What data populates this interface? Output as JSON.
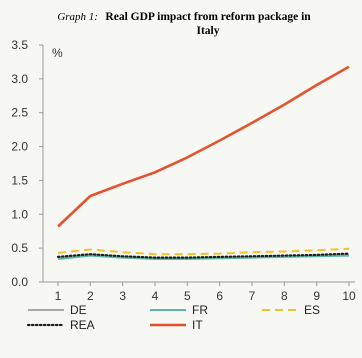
{
  "chart_data": {
    "type": "line",
    "title_prefix": "Graph 1:",
    "title_line1": "Real GDP impact from reform package in",
    "title_line2": "Italy",
    "unit_label": "%",
    "x": [
      1,
      2,
      3,
      4,
      5,
      6,
      7,
      8,
      9,
      10
    ],
    "x_tick_labels": [
      "1",
      "2",
      "3",
      "4",
      "5",
      "6",
      "7",
      "8",
      "9",
      "10"
    ],
    "y_tick_labels": [
      "0.0",
      "0.5",
      "1.0",
      "1.5",
      "2.0",
      "2.5",
      "3.0",
      "3.5"
    ],
    "ylim": [
      0,
      3.5
    ],
    "grid": false,
    "legend_position": "bottom",
    "series": [
      {
        "name": "DE",
        "color": "#a8a8a8",
        "style": "solid",
        "values": [
          0.35,
          0.4,
          0.37,
          0.35,
          0.35,
          0.36,
          0.37,
          0.38,
          0.39,
          0.4
        ]
      },
      {
        "name": "FR",
        "color": "#5fb7a5",
        "style": "solid",
        "values": [
          0.34,
          0.39,
          0.36,
          0.34,
          0.34,
          0.35,
          0.36,
          0.37,
          0.38,
          0.39
        ]
      },
      {
        "name": "ES",
        "color": "#f2c12e",
        "style": "dashed",
        "values": [
          0.43,
          0.48,
          0.44,
          0.41,
          0.41,
          0.42,
          0.44,
          0.45,
          0.47,
          0.49
        ]
      },
      {
        "name": "REA",
        "color": "#1f1f1f",
        "style": "dotted",
        "values": [
          0.37,
          0.41,
          0.38,
          0.36,
          0.36,
          0.37,
          0.38,
          0.39,
          0.4,
          0.42
        ]
      },
      {
        "name": "IT",
        "color": "#e2532f",
        "style": "solid",
        "values": [
          0.82,
          1.27,
          1.45,
          1.62,
          1.84,
          2.09,
          2.35,
          2.62,
          2.91,
          3.18
        ]
      }
    ]
  }
}
